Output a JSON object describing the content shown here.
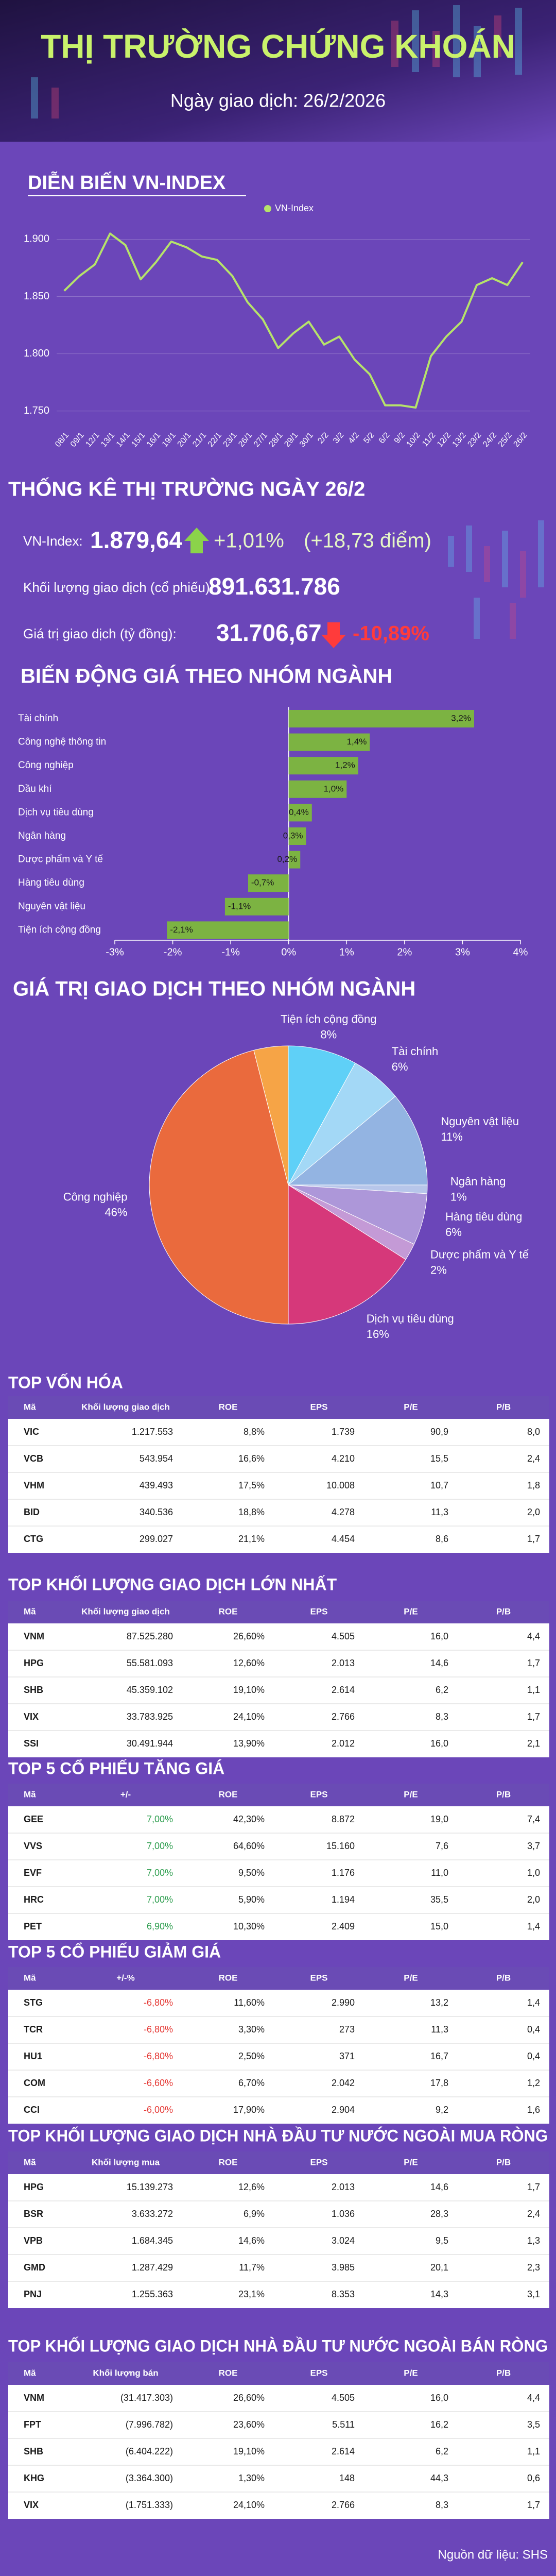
{
  "header": {
    "title": "THỊ TRƯỜNG CHỨNG KHOÁN",
    "subtitle": "Ngày giao dịch: 26/2/2026"
  },
  "chart_data": [
    {
      "type": "line",
      "title": "DIỄN BIẾN VN-INDEX",
      "categories": [
        "08/1",
        "09/1",
        "12/1",
        "13/1",
        "14/1",
        "15/1",
        "16/1",
        "19/1",
        "20/1",
        "21/1",
        "22/1",
        "23/1",
        "26/1",
        "27/1",
        "28/1",
        "29/1",
        "30/1",
        "2/2",
        "3/2",
        "4/2",
        "5/2",
        "6/2",
        "9/2",
        "10/2",
        "11/2",
        "12/2",
        "13/2",
        "23/2",
        "24/2",
        "25/2",
        "26/2"
      ],
      "series": [
        {
          "name": "VN-Index",
          "color": "#b6e36a",
          "values": [
            1855,
            1868,
            1878,
            1905,
            1895,
            1865,
            1880,
            1898,
            1893,
            1885,
            1882,
            1868,
            1845,
            1830,
            1805,
            1818,
            1828,
            1808,
            1815,
            1795,
            1782,
            1755,
            1755,
            1753,
            1798,
            1815,
            1828,
            1860,
            1866,
            1860,
            1880
          ]
        }
      ],
      "ylim": [
        1740,
        1920
      ],
      "yticks": [
        {
          "value": 1750,
          "label": "1.750"
        },
        {
          "value": 1800,
          "label": "1.800"
        },
        {
          "value": 1850,
          "label": "1.850"
        },
        {
          "value": 1900,
          "label": "1.900"
        }
      ],
      "grid": true,
      "legend": "top"
    },
    {
      "type": "barh",
      "title": "BIẾN ĐỘNG GIÁ THEO NHÓM NGÀNH",
      "categories": [
        "Tài chính",
        "Công nghệ thông tin",
        "Công nghiệp",
        "Dầu khí",
        "Dịch vụ tiêu dùng",
        "Ngân hàng",
        "Dược phẩm và Y tế",
        "Hàng tiêu dùng",
        "Nguyên vật liệu",
        "Tiện ích cộng đồng"
      ],
      "values": [
        3.2,
        1.4,
        1.2,
        1.0,
        0.4,
        0.3,
        0.2,
        -0.7,
        -1.1,
        -2.1
      ],
      "value_labels": [
        "3,2%",
        "1,4%",
        "1,2%",
        "1,0%",
        "0,4%",
        "0,3%",
        "0,2%",
        "-0,7%",
        "-1,1%",
        "-2,1%"
      ],
      "color": "#7cb342",
      "xlim": [
        -3,
        4
      ],
      "xticks": [
        {
          "value": -3,
          "label": "-3%"
        },
        {
          "value": -2,
          "label": "-2%"
        },
        {
          "value": -1,
          "label": "-1%"
        },
        {
          "value": 0,
          "label": "0%"
        },
        {
          "value": 1,
          "label": "1%"
        },
        {
          "value": 2,
          "label": "2%"
        },
        {
          "value": 3,
          "label": "3%"
        },
        {
          "value": 4,
          "label": "4%"
        }
      ]
    },
    {
      "type": "pie",
      "title": "GIÁ TRỊ GIAO DỊCH THEO NHÓM NGÀNH",
      "categories": [
        "Tiện ích cộng đồng",
        "Tài chính",
        "Nguyên vật liệu",
        "Ngân hàng",
        "Hàng tiêu dùng",
        "Dược phẩm và Y tế",
        "Dịch vụ tiêu dùng",
        "Công nghiệp",
        null
      ],
      "values": [
        8,
        6,
        11,
        1,
        6,
        2,
        16,
        46,
        4
      ],
      "value_labels": [
        "8%",
        "6%",
        "11%",
        "1%",
        "6%",
        "2%",
        "16%",
        "46%",
        null
      ],
      "colors": [
        "#5fd0f7",
        "#a3d8f6",
        "#93b4e2",
        "#b7c6ea",
        "#ad97d9",
        "#c49ad6",
        "#d6387a",
        "#ea6a3d",
        "#f6a446"
      ]
    }
  ],
  "stats": {
    "title": "THỐNG KÊ THỊ TRƯỜNG NGÀY 26/2",
    "vnindex": {
      "label": "VN-Index:",
      "value": "1.879,64",
      "change_pct": "+1,01%",
      "change_pts": "(+18,73 điểm)"
    },
    "volume": {
      "label": "Khối lượng giao dịch (cổ phiếu):",
      "value": "891.631.786"
    },
    "turnover": {
      "label": "Giá trị giao dịch (tỷ đồng):",
      "value": "31.706,67",
      "change_pct": "-10,89%"
    }
  },
  "tables": [
    {
      "title": "TOP VỐN HÓA",
      "columns": [
        "Mã",
        "Khối lượng giao dịch",
        "ROE",
        "EPS",
        "P/E",
        "P/B"
      ],
      "rows": [
        [
          "VIC",
          "1.217.553",
          "8,8%",
          "1.739",
          "90,9",
          "8,0"
        ],
        [
          "VCB",
          "543.954",
          "16,6%",
          "4.210",
          "15,5",
          "2,4"
        ],
        [
          "VHM",
          "439.493",
          "17,5%",
          "10.008",
          "10,7",
          "1,8"
        ],
        [
          "BID",
          "340.536",
          "18,8%",
          "4.278",
          "11,3",
          "2,0"
        ],
        [
          "CTG",
          "299.027",
          "21,1%",
          "4.454",
          "8,6",
          "1,7"
        ]
      ]
    },
    {
      "title": "TOP KHỐI LƯỢNG GIAO DỊCH LỚN NHẤT",
      "columns": [
        "Mã",
        "Khối lượng giao dịch",
        "ROE",
        "EPS",
        "P/E",
        "P/B"
      ],
      "rows": [
        [
          "VNM",
          "87.525.280",
          "26,60%",
          "4.505",
          "16,0",
          "4,4"
        ],
        [
          "HPG",
          "55.581.093",
          "12,60%",
          "2.013",
          "14,6",
          "1,7"
        ],
        [
          "SHB",
          "45.359.102",
          "19,10%",
          "2.614",
          "6,2",
          "1,1"
        ],
        [
          "VIX",
          "33.783.925",
          "24,10%",
          "2.766",
          "8,3",
          "1,7"
        ],
        [
          "SSI",
          "30.491.944",
          "13,90%",
          "2.012",
          "16,0",
          "2,1"
        ]
      ]
    },
    {
      "title": "TOP 5 CỔ PHIẾU TĂNG GIÁ",
      "columns": [
        "Mã",
        "+/-",
        "ROE",
        "EPS",
        "P/E",
        "P/B"
      ],
      "highlight_color": "#2e9e4f",
      "rows": [
        [
          "GEE",
          "7,00%",
          "42,30%",
          "8.872",
          "19,0",
          "7,4"
        ],
        [
          "VVS",
          "7,00%",
          "64,60%",
          "15.160",
          "7,6",
          "3,7"
        ],
        [
          "EVF",
          "7,00%",
          "9,50%",
          "1.176",
          "11,0",
          "1,0"
        ],
        [
          "HRC",
          "7,00%",
          "5,90%",
          "1.194",
          "35,5",
          "2,0"
        ],
        [
          "PET",
          "6,90%",
          "10,30%",
          "2.409",
          "15,0",
          "1,4"
        ]
      ]
    },
    {
      "title": "TOP 5 CỔ PHIẾU GIẢM GIÁ",
      "columns": [
        "Mã",
        "+/-%",
        "ROE",
        "EPS",
        "P/E",
        "P/B"
      ],
      "highlight_color": "#e53935",
      "rows": [
        [
          "STG",
          "-6,80%",
          "11,60%",
          "2.990",
          "13,2",
          "1,4"
        ],
        [
          "TCR",
          "-6,80%",
          "3,30%",
          "273",
          "11,3",
          "0,4"
        ],
        [
          "HU1",
          "-6,80%",
          "2,50%",
          "371",
          "16,7",
          "0,4"
        ],
        [
          "COM",
          "-6,60%",
          "6,70%",
          "2.042",
          "17,8",
          "1,2"
        ],
        [
          "CCI",
          "-6,00%",
          "17,90%",
          "2.904",
          "9,2",
          "1,6"
        ]
      ]
    },
    {
      "title": "TOP KHỐI LƯỢNG GIAO DỊCH NHÀ ĐẦU TƯ NƯỚC NGOÀI MUA RÒNG",
      "columns": [
        "Mã",
        "Khối lượng mua",
        "ROE",
        "EPS",
        "P/E",
        "P/B"
      ],
      "rows": [
        [
          "HPG",
          "15.139.273",
          "12,6%",
          "2.013",
          "14,6",
          "1,7"
        ],
        [
          "BSR",
          "3.633.272",
          "6,9%",
          "1.036",
          "28,3",
          "2,4"
        ],
        [
          "VPB",
          "1.684.345",
          "14,6%",
          "3.024",
          "9,5",
          "1,3"
        ],
        [
          "GMD",
          "1.287.429",
          "11,7%",
          "3.985",
          "20,1",
          "2,3"
        ],
        [
          "PNJ",
          "1.255.363",
          "23,1%",
          "8.353",
          "14,3",
          "3,1"
        ]
      ]
    },
    {
      "title": "TOP KHỐI LƯỢNG GIAO DỊCH NHÀ ĐẦU TƯ NƯỚC NGOÀI BÁN RÒNG",
      "columns": [
        "Mã",
        "Khối lượng bán",
        "ROE",
        "EPS",
        "P/E",
        "P/B"
      ],
      "rows": [
        [
          "VNM",
          "(31.417.303)",
          "26,60%",
          "4.505",
          "16,0",
          "4,4"
        ],
        [
          "FPT",
          "(7.996.782)",
          "23,60%",
          "5.511",
          "16,2",
          "3,5"
        ],
        [
          "SHB",
          "(6.404.222)",
          "19,10%",
          "2.614",
          "6,2",
          "1,1"
        ],
        [
          "KHG",
          "(3.364.300)",
          "1,30%",
          "148",
          "44,3",
          "0,6"
        ],
        [
          "VIX",
          "(1.751.333)",
          "24,10%",
          "2.766",
          "8,3",
          "1,7"
        ]
      ]
    }
  ],
  "source": "Nguồn dữ liệu: SHS"
}
